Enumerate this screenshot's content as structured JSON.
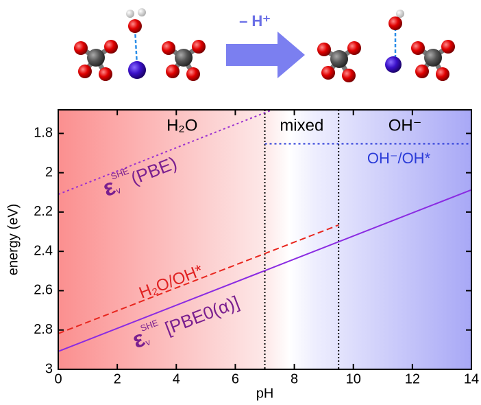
{
  "illustration": {
    "arrow_label": "– H⁺"
  },
  "chart_data": {
    "type": "line",
    "xlabel": "pH",
    "ylabel": "energy (eV)",
    "xlim": [
      0,
      14
    ],
    "xticks": [
      0,
      2,
      4,
      6,
      8,
      10,
      12,
      14
    ],
    "ylim": [
      3,
      1.68
    ],
    "yticks": [
      1.8,
      2,
      2.2,
      2.4,
      2.6,
      2.8,
      3
    ],
    "regions": [
      {
        "label": "H₂O",
        "from": 0,
        "to": 7
      },
      {
        "label": "mixed",
        "from": 7,
        "to": 9.5
      },
      {
        "label": "OH⁻",
        "from": 9.5,
        "to": 14
      }
    ],
    "series": [
      {
        "color": "#9b30d0",
        "style": "dotted",
        "x": [
          0,
          7.25
        ],
        "values": [
          2.11,
          1.68
        ]
      },
      {
        "color": "#2a3bd8",
        "style": "dotted",
        "x": [
          7,
          14
        ],
        "values": [
          1.853,
          1.853
        ]
      },
      {
        "color": "#e8261e",
        "style": "dashed",
        "x": [
          0,
          9.5
        ],
        "values": [
          2.818,
          2.266
        ]
      },
      {
        "color": "#8a2be2",
        "style": "solid",
        "x": [
          0,
          14
        ],
        "values": [
          2.909,
          2.087
        ]
      }
    ],
    "annotations": [
      {
        "symbol": "ε",
        "sub": "v",
        "sup": "SHE",
        "text": "(PBE)",
        "color": "#7a1f8f"
      },
      {
        "text": "OH⁻/OH*",
        "color": "#2a3bd8"
      },
      {
        "text": "H₂O/OH*",
        "color": "#e02020"
      },
      {
        "symbol": "ε",
        "sub": "v",
        "sup": "SHE",
        "text": " [PBE0(α)]",
        "color": "#7a1f8f"
      }
    ]
  }
}
